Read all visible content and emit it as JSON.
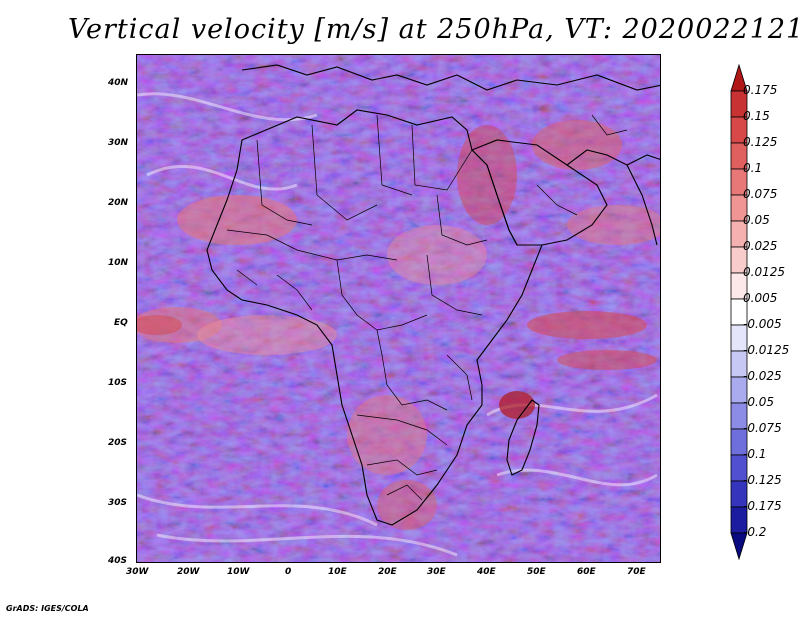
{
  "title": "Vertical velocity [m/s] at 250hPa, VT: 2020022121",
  "map": {
    "lat_ticks": [
      "40N",
      "30N",
      "20N",
      "10N",
      "EQ",
      "10S",
      "20S",
      "30S",
      "40S"
    ],
    "lon_ticks": [
      "30W",
      "20W",
      "10W",
      "0",
      "10E",
      "20E",
      "30E",
      "40E",
      "50E",
      "60E",
      "70E"
    ],
    "lat_range": [
      -40,
      45
    ],
    "lon_range": [
      -30,
      75
    ]
  },
  "colorbar": {
    "labels": [
      "0.175",
      "0.15",
      "0.125",
      "0.1",
      "0.075",
      "0.05",
      "0.025",
      "0.0125",
      "0.005",
      "-0.005",
      "-0.0125",
      "-0.025",
      "-0.05",
      "-0.075",
      "-0.1",
      "-0.125",
      "-0.175",
      "-0.2"
    ],
    "colors": [
      "#b01818",
      "#c83232",
      "#d84848",
      "#e06060",
      "#e87878",
      "#f09494",
      "#f5b0b0",
      "#f9cccc",
      "#fce8e8",
      "#ffffff",
      "#e4e4fb",
      "#c8c8f5",
      "#aaaaee",
      "#8c8ce6",
      "#6e6edc",
      "#5050d0",
      "#3434bc",
      "#1c1ca0",
      "#0a0a80"
    ]
  },
  "credit": "GrADS: IGES/COLA"
}
